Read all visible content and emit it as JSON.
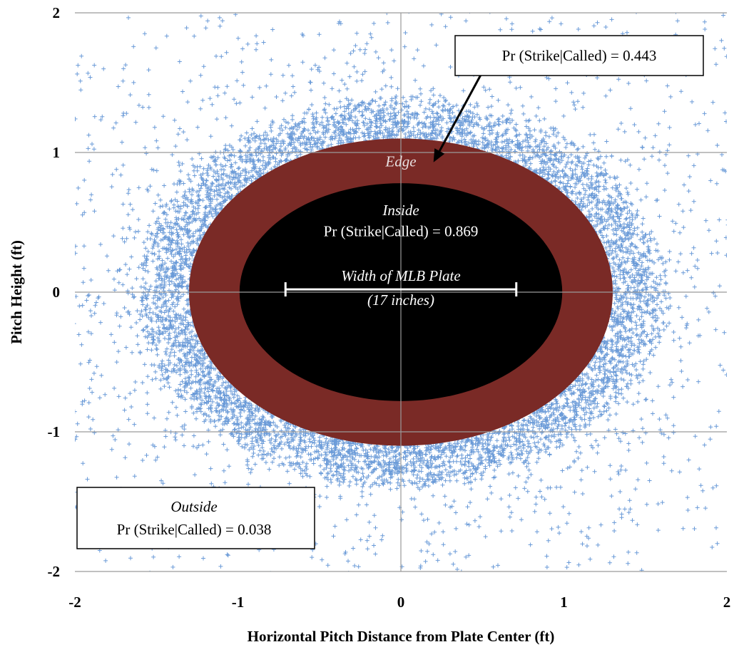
{
  "chart_data": {
    "type": "scatter",
    "xlabel": "Horizontal Pitch Distance from Plate Center (ft)",
    "ylabel": "Pitch Height (ft)",
    "xlim": [
      -2,
      2
    ],
    "ylim": [
      -2,
      2
    ],
    "x_ticks": [
      "-2",
      "-1",
      "0",
      "1",
      "2"
    ],
    "y_ticks": [
      "2",
      "1",
      "0",
      "-1",
      "-2"
    ],
    "x_tick_values": [
      -2,
      -1,
      0,
      1,
      2
    ],
    "y_tick_values": [
      2,
      1,
      0,
      -1,
      -2
    ],
    "grid": true,
    "marker": "+",
    "colors": {
      "scatter": "#6b9bd8",
      "edge_region": "#7a2a26",
      "inside_region": "#000000",
      "grid": "#9a9a9a",
      "plate_bar": "#ffffff"
    },
    "regions": {
      "inside": {
        "label": "Inside",
        "stat": "Pr (Strike|Called)  = 0.869",
        "center": [
          0,
          0
        ],
        "rx": 0.99,
        "ry": 0.78
      },
      "edge": {
        "label": "Edge",
        "center": [
          0,
          0
        ],
        "rx": 1.3,
        "ry": 1.1
      },
      "cloud": {
        "center": [
          0,
          0
        ],
        "rx": 1.56,
        "ry": 1.35
      }
    },
    "plate": {
      "label_line1": "Width of MLB Plate",
      "label_line2": "(17 inches)",
      "x_start": -0.708,
      "x_end": 0.708,
      "y": 0.02
    },
    "annotations": {
      "edge_box": {
        "text": "Pr (Strike|Called)  = 0.443",
        "arrow_from": [
          0.52,
          1.62
        ],
        "arrow_to": [
          0.2,
          0.93
        ]
      },
      "outside_box": {
        "label": "Outside",
        "stat": "Pr (Strike|Called)  = 0.038"
      }
    }
  }
}
